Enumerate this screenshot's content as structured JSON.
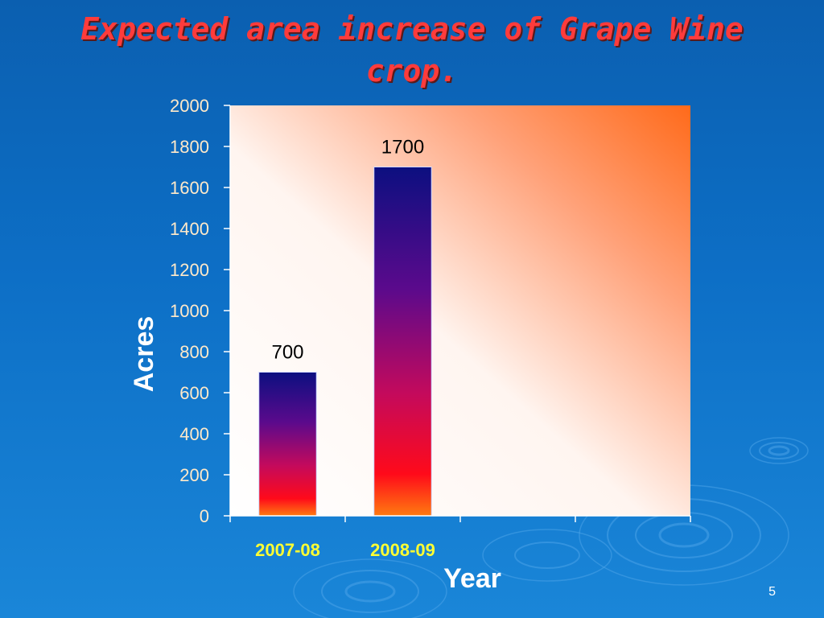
{
  "slide": {
    "title": "Expected area increase of Grape Wine crop.",
    "page_number": "5"
  },
  "colors": {
    "background": "#0d6fc6",
    "title": "#ff3b3b",
    "tick_label": "#ffe9c9",
    "category_label": "#ffff33",
    "axis_title": "#ffffff",
    "plot_gradient_end": "#ff6a1a"
  },
  "chart_data": {
    "type": "bar",
    "title": "Expected area increase of Grape Wine crop.",
    "xlabel": "Year",
    "ylabel": "Acres",
    "categories": [
      "2007-08",
      "2008-09"
    ],
    "values": [
      700,
      1700
    ],
    "data_labels": [
      "700",
      "1700"
    ],
    "ylim": [
      0,
      2000
    ],
    "y_ticks": [
      0,
      200,
      400,
      600,
      800,
      1000,
      1200,
      1400,
      1600,
      1800,
      2000
    ],
    "x_slots": 4,
    "grid": false,
    "legend": "none"
  }
}
